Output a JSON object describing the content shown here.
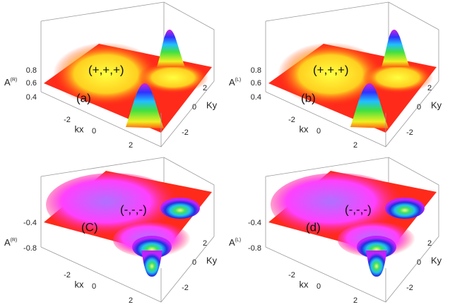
{
  "panels": [
    {
      "label": "(a)",
      "annotation": "(+,+,+)",
      "z_label": {
        "base": "A",
        "sup": "(R)"
      },
      "z_ticks": [
        "0.8",
        "0.6",
        "0.4"
      ],
      "kx_label": "kx",
      "kx_ticks": [
        "-2",
        "0",
        "2"
      ],
      "ky_label": "Ky",
      "ky_ticks": [
        "2",
        "0",
        "-2"
      ]
    },
    {
      "label": "(b)",
      "annotation": "(+,+,+)",
      "z_label": {
        "base": "A",
        "sup": "(L)"
      },
      "z_ticks": [
        "0.8",
        "0.6",
        "0.4"
      ],
      "kx_label": "kx",
      "kx_ticks": [
        "-2",
        "0",
        "2"
      ],
      "ky_label": "Ky",
      "ky_ticks": [
        "2",
        "0",
        "-2"
      ]
    },
    {
      "label": "(C)",
      "annotation": "(-,-,-)",
      "z_label": {
        "base": "A",
        "sup": "(R)"
      },
      "z_ticks": [
        "-0.4",
        "-0.8"
      ],
      "kx_label": "kx",
      "kx_ticks": [
        "-2",
        "0",
        "2"
      ],
      "ky_label": "Ky",
      "ky_ticks": [
        "2",
        "0",
        "-2"
      ]
    },
    {
      "label": "(d)",
      "annotation": "(-,-,-)",
      "z_label": {
        "base": "A",
        "sup": "(L)"
      },
      "z_ticks": [
        "-0.4",
        "-0.8"
      ],
      "kx_label": "kx",
      "kx_ticks": [
        "-2",
        "0",
        "2"
      ],
      "ky_label": "Ky",
      "ky_ticks": [
        "2",
        "0",
        "-2"
      ]
    }
  ]
}
